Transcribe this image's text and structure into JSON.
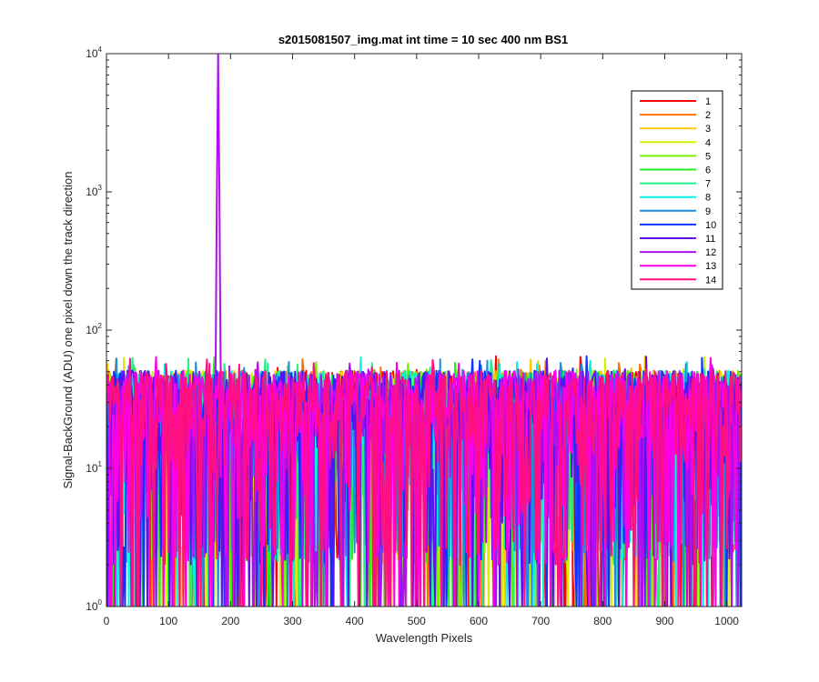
{
  "chart_data": {
    "type": "line",
    "title": "s2015081507_img.mat int time = 10 sec  400 nm BS1",
    "xlabel": "Wavelength Pixels",
    "ylabel": "Signal-BackGround (ADU) one pixel down the track direction",
    "xlim": [
      0,
      1024
    ],
    "ylim": [
      1,
      10000
    ],
    "yscale": "log",
    "grid": false,
    "legend_position": "top-right",
    "x_ticks": [
      0,
      100,
      200,
      300,
      400,
      500,
      600,
      700,
      800,
      900,
      1000
    ],
    "y_ticks": [
      {
        "base": "10",
        "exp": "0"
      },
      {
        "base": "10",
        "exp": "1"
      },
      {
        "base": "10",
        "exp": "2"
      },
      {
        "base": "10",
        "exp": "3"
      },
      {
        "base": "10",
        "exp": "4"
      }
    ],
    "series": [
      {
        "name": "1",
        "color": "#ff0000"
      },
      {
        "name": "2",
        "color": "#ff7000"
      },
      {
        "name": "3",
        "color": "#ffc800"
      },
      {
        "name": "4",
        "color": "#d4f000"
      },
      {
        "name": "5",
        "color": "#7af000"
      },
      {
        "name": "6",
        "color": "#22ee22"
      },
      {
        "name": "7",
        "color": "#22f08a"
      },
      {
        "name": "8",
        "color": "#00f5e8"
      },
      {
        "name": "9",
        "color": "#1a8ee0"
      },
      {
        "name": "10",
        "color": "#1030ff"
      },
      {
        "name": "11",
        "color": "#6010ee"
      },
      {
        "name": "12",
        "color": "#b010f0"
      },
      {
        "name": "13",
        "color": "#ff00e0"
      },
      {
        "name": "14",
        "color": "#ff1080"
      }
    ],
    "peak": {
      "series": "12",
      "x": 180,
      "y": 10000
    },
    "noise_range": [
      2,
      65
    ]
  }
}
